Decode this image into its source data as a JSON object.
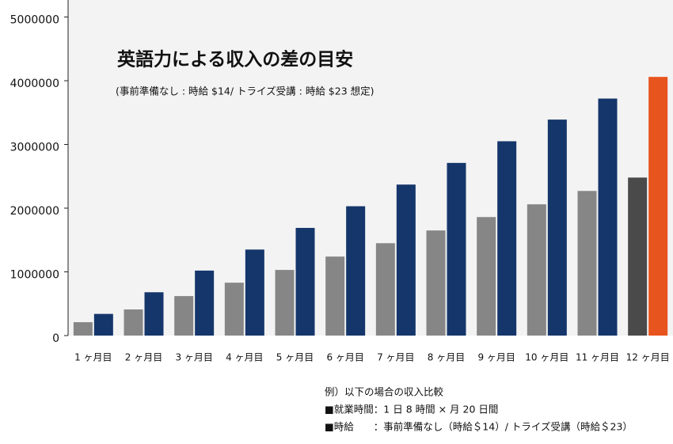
{
  "chart_data": {
    "type": "bar",
    "title": "英語力による収入の差の目安",
    "subtitle": "(事前準備なし : 時給 $14/ トライズ受講 : 時給 $23 想定)",
    "categories": [
      "1 ヶ月目",
      "2 ヶ月目",
      "3 ヶ月目",
      "4 ヶ月目",
      "5 ヶ月目",
      "6 ヶ月目",
      "7 ヶ月目",
      "8 ヶ月目",
      "9 ヶ月目",
      "10 ヶ月目",
      "11 ヶ月目",
      "12 ヶ月目"
    ],
    "series": [
      {
        "values": [
          210000,
          410000,
          620000,
          830000,
          1030000,
          1240000,
          1450000,
          1650000,
          1860000,
          2060000,
          2270000,
          2480000
        ],
        "colors": [
          "#868686",
          "#868686",
          "#868686",
          "#868686",
          "#868686",
          "#868686",
          "#868686",
          "#868686",
          "#868686",
          "#868686",
          "#868686",
          "#4a4a4a"
        ]
      },
      {
        "values": [
          340000,
          680000,
          1020000,
          1350000,
          1690000,
          2030000,
          2370000,
          2710000,
          3050000,
          3390000,
          3720000,
          4060000
        ],
        "colors": [
          "#14366b",
          "#14366b",
          "#14366b",
          "#14366b",
          "#14366b",
          "#14366b",
          "#14366b",
          "#14366b",
          "#14366b",
          "#14366b",
          "#14366b",
          "#e8541e"
        ]
      }
    ],
    "ylim": [
      0,
      5000000
    ],
    "yticks": [
      0,
      1000000,
      2000000,
      3000000,
      4000000,
      5000000
    ],
    "notes": [
      "例）以下の場合の収入比較",
      "■就業時間：1 日 8 時間 × 月 20 日間",
      "■時給　　：事前準備なし（時給＄14）/ トライズ受講（時給＄23）"
    ]
  }
}
